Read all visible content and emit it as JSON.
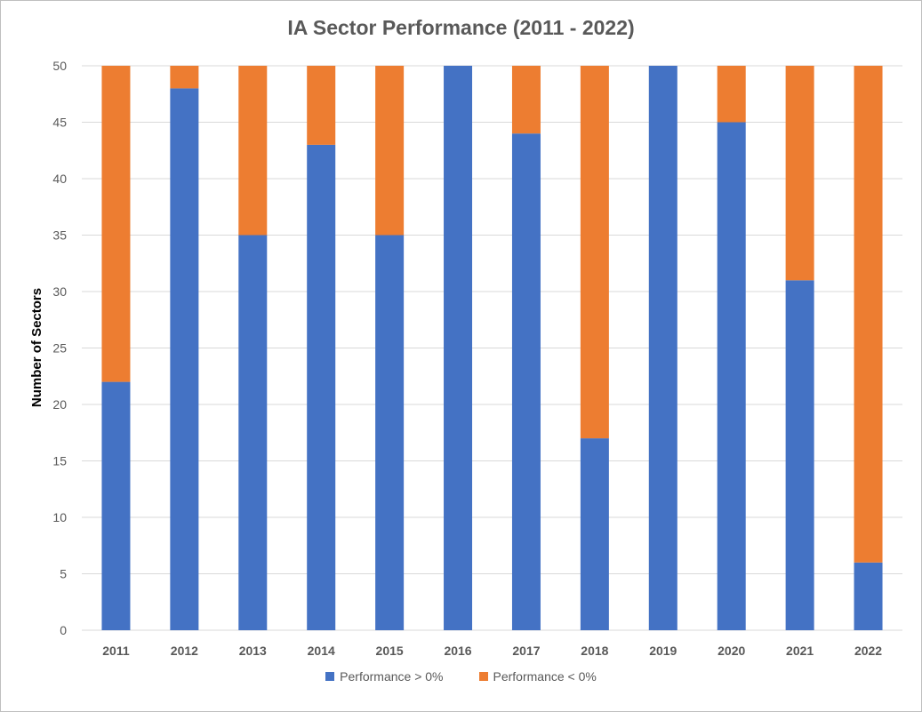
{
  "chart_data": {
    "type": "bar",
    "stacked": true,
    "title": "IA Sector Performance (2011 - 2022)",
    "xlabel": "",
    "ylabel": "Number of Sectors",
    "ylim": [
      0,
      50
    ],
    "yticks": [
      0,
      5,
      10,
      15,
      20,
      25,
      30,
      35,
      40,
      45,
      50
    ],
    "grid": true,
    "legend_position": "bottom",
    "categories": [
      "2011",
      "2012",
      "2013",
      "2014",
      "2015",
      "2016",
      "2017",
      "2018",
      "2019",
      "2020",
      "2021",
      "2022"
    ],
    "series": [
      {
        "name": "Performance > 0%",
        "color": "#4472c4",
        "values": [
          22,
          48,
          35,
          43,
          35,
          50,
          44,
          17,
          50,
          45,
          31,
          6
        ]
      },
      {
        "name": "Performance < 0%",
        "color": "#ed7d31",
        "values": [
          28,
          2,
          15,
          7,
          15,
          0,
          6,
          33,
          0,
          5,
          19,
          44
        ]
      }
    ]
  }
}
